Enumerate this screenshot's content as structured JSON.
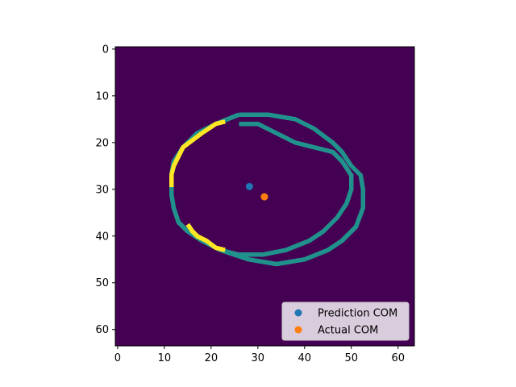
{
  "chart_data": {
    "type": "heatmap",
    "title": "",
    "xlabel": "",
    "ylabel": "",
    "image_size": [
      64,
      64
    ],
    "colormap": "viridis",
    "background_color": "#440154",
    "xlim": [
      -0.5,
      63.5
    ],
    "ylim": [
      63.5,
      -0.5
    ],
    "xticks": [
      0,
      10,
      20,
      30,
      40,
      50,
      60
    ],
    "yticks": [
      0,
      10,
      20,
      30,
      40,
      50,
      60
    ],
    "contours": [
      {
        "name": "outer-ring",
        "value": 0.5,
        "color": "#21918c",
        "points": [
          [
            26,
            14
          ],
          [
            32,
            14
          ],
          [
            38,
            15
          ],
          [
            42,
            17
          ],
          [
            46,
            20
          ],
          [
            48,
            22
          ],
          [
            50,
            25
          ],
          [
            52,
            27
          ],
          [
            52.5,
            30
          ],
          [
            52.5,
            34
          ],
          [
            51,
            38
          ],
          [
            48,
            41
          ],
          [
            45,
            43
          ],
          [
            40,
            45
          ],
          [
            34,
            46
          ],
          [
            28,
            45
          ],
          [
            22,
            43
          ],
          [
            18,
            41
          ],
          [
            15,
            39
          ],
          [
            13,
            37
          ],
          [
            12,
            34
          ],
          [
            11.5,
            31
          ],
          [
            11.5,
            27
          ],
          [
            12,
            24
          ],
          [
            14,
            21
          ],
          [
            17,
            18
          ],
          [
            21,
            16
          ],
          [
            26,
            14
          ]
        ]
      },
      {
        "name": "inner-ring",
        "value": 0.5,
        "color": "#21918c",
        "points": [
          [
            26,
            16
          ],
          [
            30,
            16
          ],
          [
            34,
            18
          ],
          [
            38,
            20
          ],
          [
            42,
            21
          ],
          [
            46,
            22
          ],
          [
            48,
            24
          ],
          [
            50,
            27
          ],
          [
            50,
            30
          ],
          [
            49,
            33
          ],
          [
            47,
            36
          ],
          [
            44,
            39
          ],
          [
            41,
            41
          ],
          [
            36,
            43
          ],
          [
            31,
            44
          ],
          [
            26,
            44
          ],
          [
            22,
            43
          ]
        ]
      },
      {
        "name": "bright-arc",
        "value": 1.0,
        "color": "#fde725",
        "points": [
          [
            23,
            15.5
          ],
          [
            21,
            16
          ],
          [
            18,
            18
          ],
          [
            16,
            19.5
          ],
          [
            14,
            21
          ],
          [
            13,
            23
          ],
          [
            12,
            25
          ],
          [
            11.5,
            27
          ],
          [
            11.5,
            29.5
          ]
        ]
      },
      {
        "name": "bright-arc-lower",
        "value": 1.0,
        "color": "#fde725",
        "points": [
          [
            15,
            37.5
          ],
          [
            16,
            39
          ],
          [
            17,
            40
          ],
          [
            19,
            41
          ],
          [
            21,
            42.5
          ],
          [
            23,
            43
          ]
        ]
      }
    ],
    "series": [
      {
        "name": "Prediction COM",
        "x": 28.2,
        "y": 29.4,
        "color": "#1f77b4"
      },
      {
        "name": "Actual COM",
        "x": 31.4,
        "y": 31.6,
        "color": "#ff7f0e"
      }
    ],
    "legend_position": "lower-right",
    "grid": false
  }
}
